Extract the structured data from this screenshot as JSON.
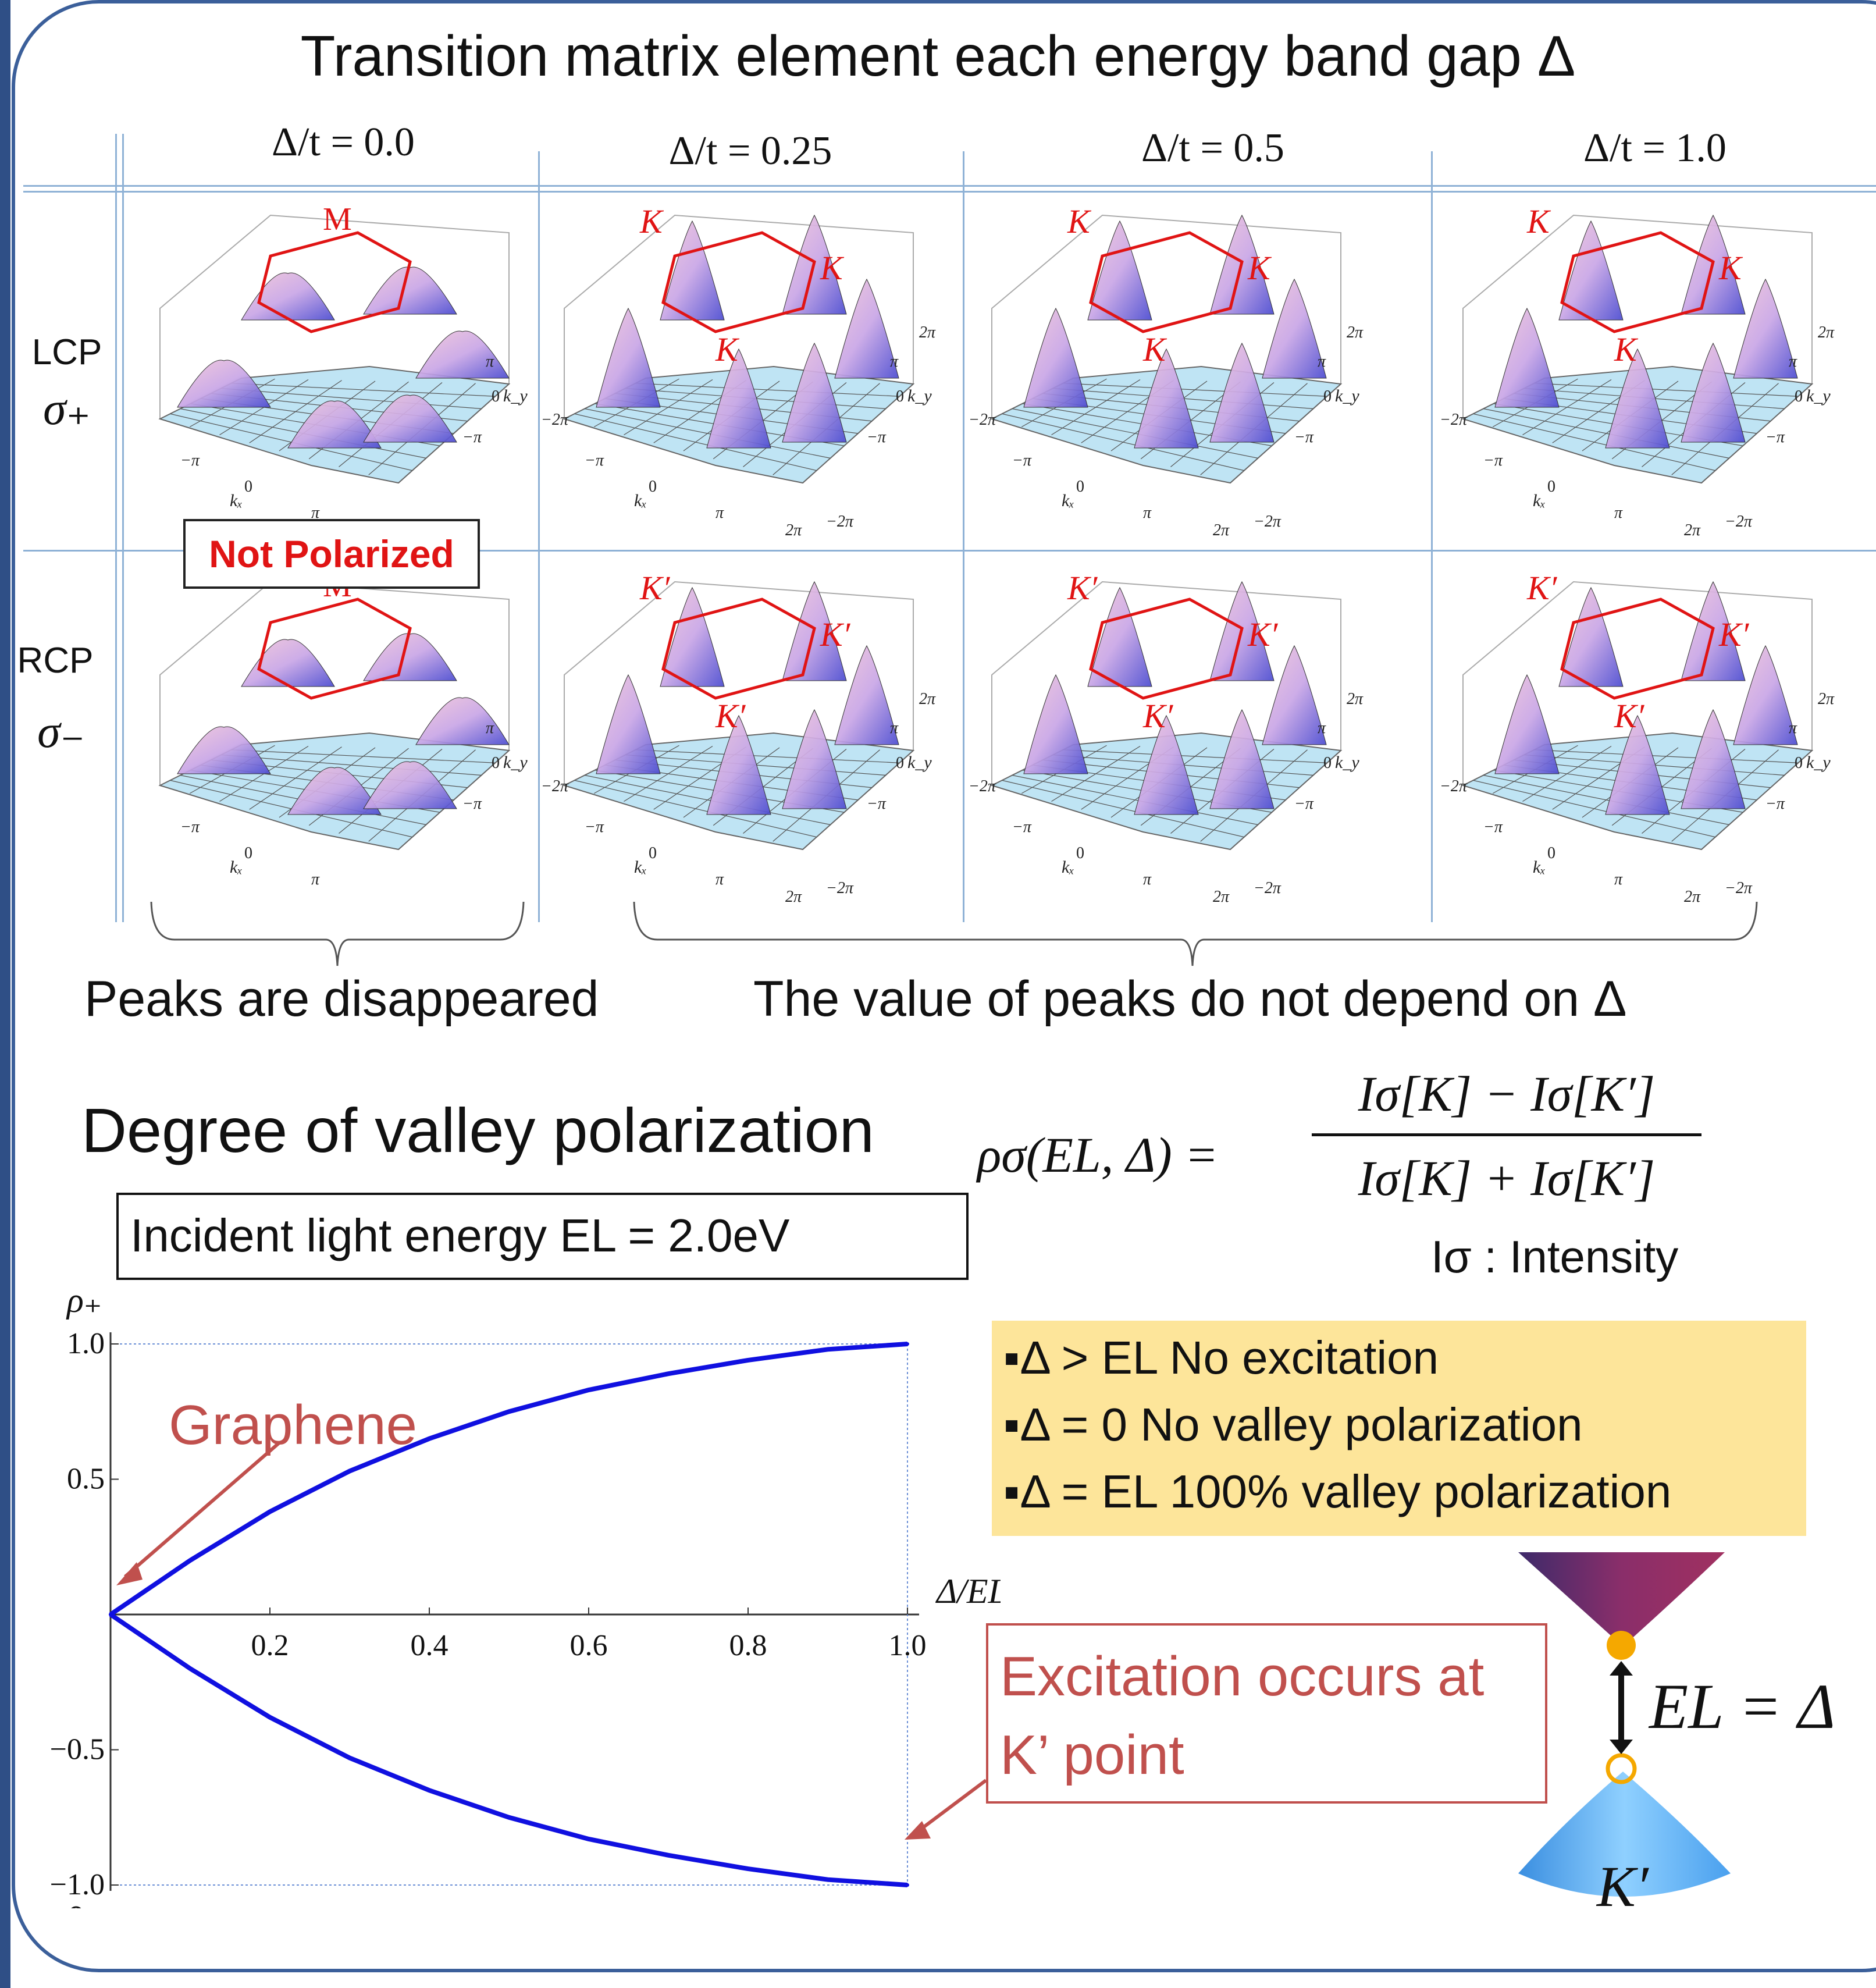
{
  "title": "Transition matrix element each energy band gap Δ",
  "columns": [
    "Δ/t = 0.0",
    "Δ/t = 0.25",
    "Δ/t = 0.5",
    "Δ/t = 1.0"
  ],
  "rows": [
    {
      "label": "LCP",
      "symbol": "σ₊",
      "valley": "K"
    },
    {
      "label": "RCP",
      "symbol": "σ₋",
      "valley": "K′"
    }
  ],
  "panel_labels": {
    "m_point": "M",
    "k_point": "K",
    "kprime_point": "K′",
    "axis_kx": "kₓ",
    "axis_ky": "k_y",
    "tick_minus_pi": "−π",
    "tick_pi": "π",
    "tick_zero": "0",
    "tick_minus_2pi": "−2π",
    "tick_2pi": "2π"
  },
  "not_polarized": "Not Polarized",
  "caption_left": "Peaks are disappeared",
  "caption_right": "The value of peaks do not depend on Δ",
  "degree_title": "Degree of valley polarization",
  "formula": {
    "lhs": "ρσ(EL, Δ) =",
    "numerator": "Iσ[K] − Iσ[K′]",
    "denominator": "Iσ[K] + Iσ[K′]"
  },
  "intensity_note": "Iσ :  Intensity",
  "incident": "Incident light energy EL = 2.0eV",
  "notes": [
    "▪Δ > EL  No excitation",
    "▪Δ = 0    No valley polarization",
    "▪Δ = EL  100% valley polarization"
  ],
  "graphene_label": "Graphene",
  "excitation_line1": "Excitation occurs at",
  "excitation_line2": "K’ point",
  "el_delta": "EL = Δ",
  "cone_label": "K′",
  "colors": {
    "curve": "#1010e0",
    "annotation": "#c0504d",
    "frame": "#3b5f9a",
    "note_bg": "#fde59a",
    "cone_upper": "#8a2e6a",
    "cone_lower": "#5ab0f0",
    "point": "#f5a800"
  },
  "chart_data": {
    "type": "line",
    "xlabel": "Δ/EL",
    "ylabel_top": "ρ₊",
    "ylabel_bottom": "ρ₋",
    "xlim": [
      0,
      1.0
    ],
    "ylim": [
      -1.0,
      1.0
    ],
    "xticks": [
      "0.2",
      "0.4",
      "0.6",
      "0.8",
      "1.0"
    ],
    "yticks": [
      "1.0",
      "0.5",
      "−0.5",
      "−1.0"
    ],
    "series": [
      {
        "x": [
          0,
          0.1,
          0.2,
          0.3,
          0.4,
          0.5,
          0.6,
          0.7,
          0.8,
          0.9,
          1.0
        ],
        "y": [
          0,
          0.2,
          0.38,
          0.53,
          0.65,
          0.75,
          0.83,
          0.89,
          0.94,
          0.98,
          1.0
        ]
      },
      {
        "x": [
          0,
          0.1,
          0.2,
          0.3,
          0.4,
          0.5,
          0.6,
          0.7,
          0.8,
          0.9,
          1.0
        ],
        "y": [
          0,
          -0.2,
          -0.38,
          -0.53,
          -0.65,
          -0.75,
          -0.83,
          -0.89,
          -0.94,
          -0.98,
          -1.0
        ]
      }
    ]
  }
}
